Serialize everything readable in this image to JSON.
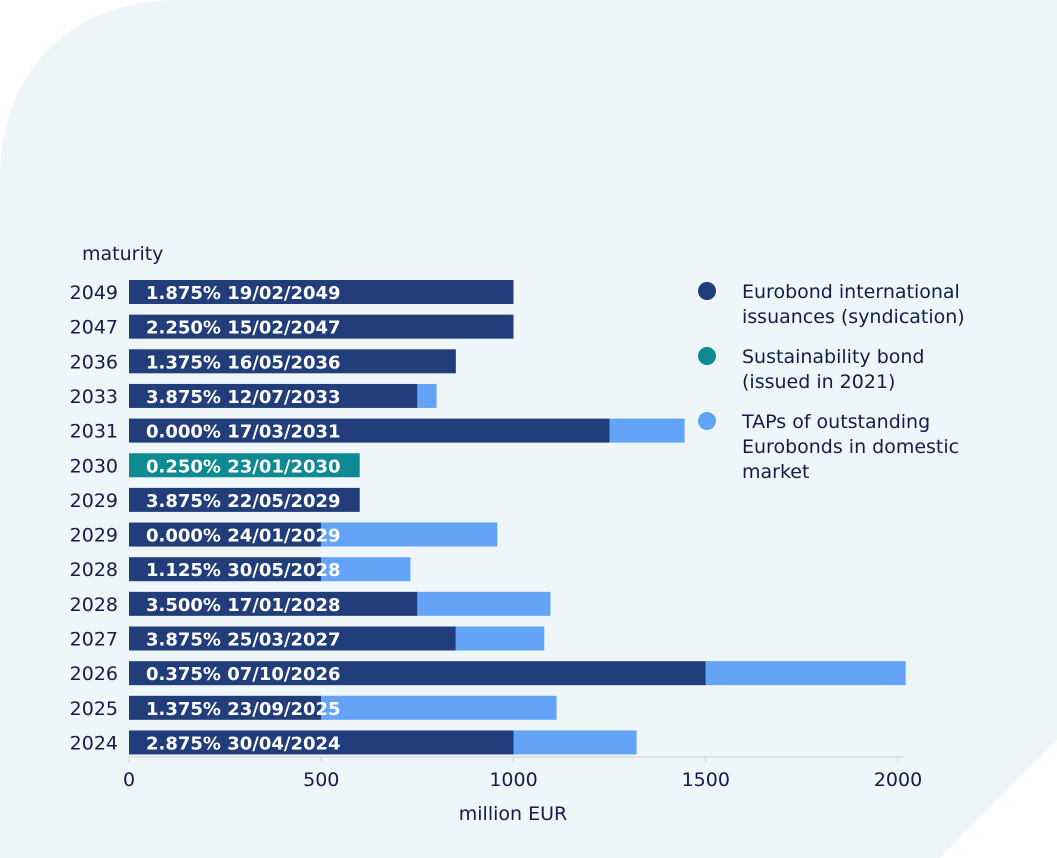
{
  "colors": {
    "background_panel": "#eff6f9",
    "eurobond": "#213e7b",
    "sustainability": "#0d8a92",
    "taps": "#64a4f7",
    "text": "#0f1f4a",
    "bar_label": "#ffffff"
  },
  "chart_data": {
    "type": "bar",
    "orientation": "horizontal",
    "stacked": true,
    "ylabel": "maturity",
    "xlabel": "million EUR",
    "xlim": [
      0,
      2000
    ],
    "xticks": [
      0,
      500,
      1000,
      1500,
      2000
    ],
    "grid": false,
    "legend_position": "top-right",
    "categories": [
      "2049",
      "2047",
      "2036",
      "2033",
      "2031",
      "2030",
      "2029",
      "2029",
      "2028",
      "2028",
      "2027",
      "2026",
      "2025",
      "2024"
    ],
    "bar_labels": [
      "1.875% 19/02/2049",
      "2.250% 15/02/2047",
      "1.375% 16/05/2036",
      "3.875% 12/07/2033",
      "0.000% 17/03/2031",
      "0.250% 23/01/2030",
      "3.875% 22/05/2029",
      "0.000% 24/01/2029",
      "1.125% 30/05/2028",
      "3.500% 17/01/2028",
      "3.875% 25/03/2027",
      "0.375% 07/10/2026",
      "1.375% 23/09/2025",
      "2.875% 30/04/2024"
    ],
    "series": [
      {
        "name": "Eurobond international issuances (syndication)",
        "color_key": "eurobond",
        "values": [
          1000,
          1000,
          850,
          750,
          1250,
          0,
          600,
          500,
          500,
          750,
          850,
          1500,
          500,
          1000
        ]
      },
      {
        "name": "Sustainability bond (issued in 2021)",
        "color_key": "sustainability",
        "values": [
          0,
          0,
          0,
          0,
          0,
          600,
          0,
          0,
          0,
          0,
          0,
          0,
          0,
          0
        ]
      },
      {
        "name": "TAPs of outstanding Eurobonds in domestic market",
        "color_key": "taps",
        "values": [
          0,
          0,
          0,
          50,
          195,
          0,
          0,
          458,
          232,
          346,
          230,
          520,
          612,
          320
        ]
      }
    ]
  },
  "legend": [
    {
      "lines": [
        "Eurobond international",
        "issuances (syndication)"
      ],
      "color_key": "eurobond"
    },
    {
      "lines": [
        "Sustainability bond",
        "(issued in 2021)"
      ],
      "color_key": "sustainability"
    },
    {
      "lines": [
        "TAPs of outstanding",
        "Eurobonds in domestic",
        "market"
      ],
      "color_key": "taps"
    }
  ]
}
